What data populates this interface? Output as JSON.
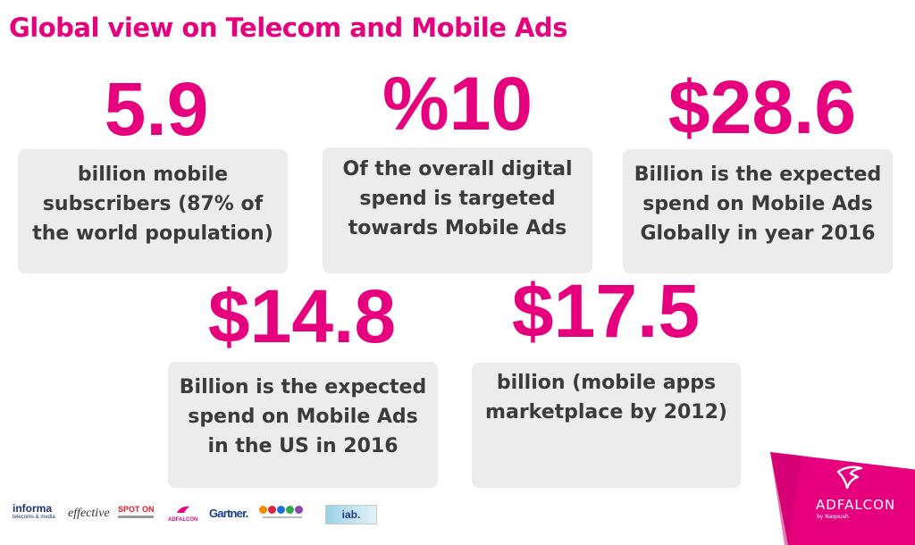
{
  "header": {
    "title": "Global view on Telecom and Mobile Ads"
  },
  "stats": [
    {
      "value": "5.9",
      "description": "billion mobile subscribers (87% of  the world population)"
    },
    {
      "value": "%10",
      "description": "Of the overall digital spend is targeted towards Mobile Ads"
    },
    {
      "value": "$28.6",
      "description": "Billion is the expected spend on Mobile Ads Globally in year 2016"
    },
    {
      "value": "$14.8",
      "description": "Billion is the expected spend on Mobile Ads in the US in 2016"
    },
    {
      "value": "$17.5",
      "description": "billion (mobile apps marketplace by 2012)"
    }
  ],
  "source_logos": {
    "informa": "informa",
    "informa_sub": "telecoms & media",
    "effective": "effective",
    "spot_on": "SPOT ON",
    "adfalcon_small": "ADFALCON",
    "gartner": "Gartner.",
    "iab": "iab."
  },
  "brand": {
    "name": "ADFALCON",
    "tagline": "by Naqoush"
  },
  "colors": {
    "accent": "#e6007e",
    "card_bg": "#ececec",
    "text": "#3b3b3b"
  }
}
